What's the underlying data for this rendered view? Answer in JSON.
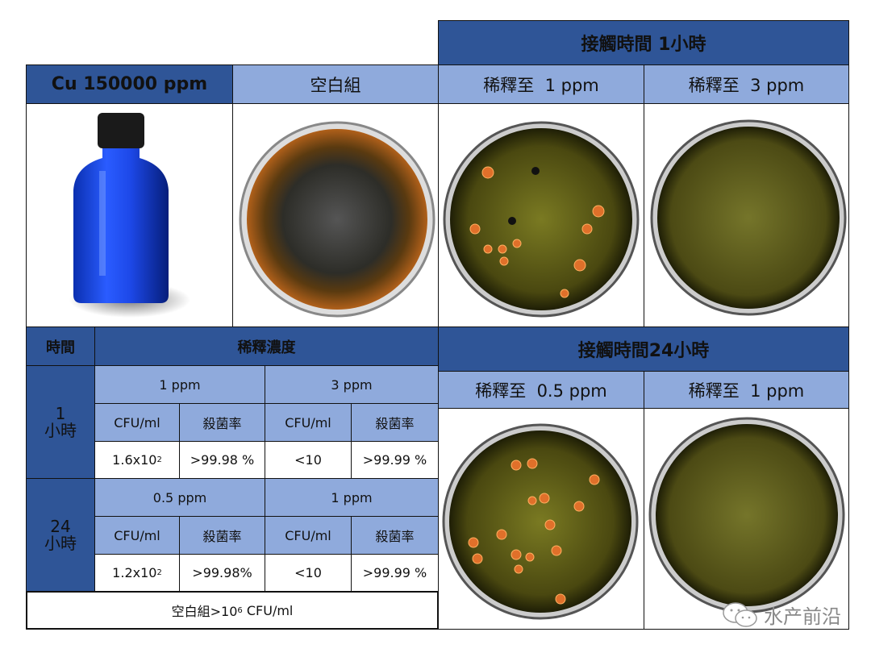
{
  "top": {
    "contact_1h": "接觸時間 1小時",
    "contact_24h": "接觸時間24小時",
    "cu_label": "Cu 150000 ppm",
    "blank_label": "空白組",
    "dilute_1h_a": "稀釋至  1 ppm",
    "dilute_1h_b": "稀釋至  3 ppm",
    "dilute_24h_a": "稀釋至  0.5 ppm",
    "dilute_24h_b": "稀釋至  1 ppm"
  },
  "table": {
    "time_header": "時間",
    "conc_header": "稀釋濃度",
    "rows": [
      {
        "time_num": "1",
        "time_unit": "小時",
        "groups": [
          {
            "conc": "1 ppm",
            "cfu_label": "CFU/ml",
            "rate_label": "殺菌率",
            "cfu_base": "1.6x10",
            "cfu_exp": "2",
            "rate": ">99.98 %"
          },
          {
            "conc": "3 ppm",
            "cfu_label": "CFU/ml",
            "rate_label": "殺菌率",
            "cfu_base": "<10",
            "cfu_exp": "",
            "rate": ">99.99 %"
          }
        ]
      },
      {
        "time_num": "24",
        "time_unit": "小時",
        "groups": [
          {
            "conc": "0.5 ppm",
            "cfu_label": "CFU/ml",
            "rate_label": "殺菌率",
            "cfu_base": "1.2x10",
            "cfu_exp": "2",
            "rate": ">99.98%"
          },
          {
            "conc": "1 ppm",
            "cfu_label": "CFU/ml",
            "rate_label": "殺菌率",
            "cfu_base": "<10",
            "cfu_exp": "",
            "rate": ">99.99 %"
          }
        ]
      }
    ],
    "footer_prefix": "空白組>10",
    "footer_exp": "6",
    "footer_suffix": " CFU/ml"
  },
  "watermark": {
    "icon": "wechat-icon",
    "text": "水产前沿"
  },
  "colors": {
    "dark_blue": "#2f5597",
    "light_blue": "#8faadc",
    "colony": "#e0702a"
  }
}
